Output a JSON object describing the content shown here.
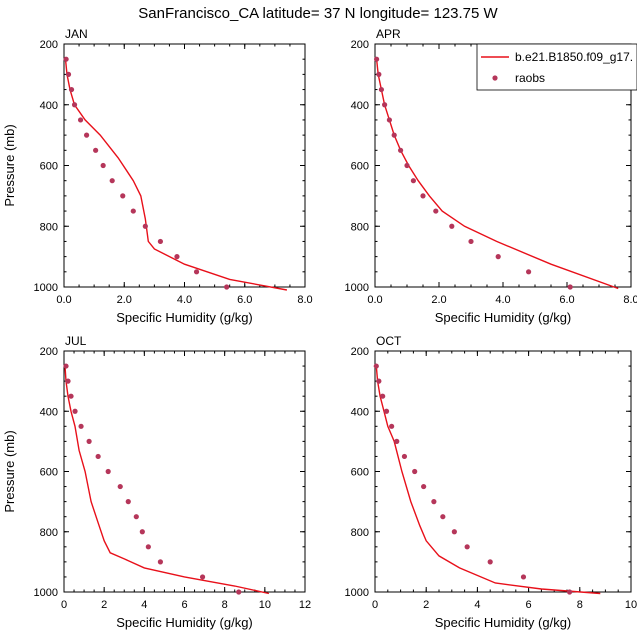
{
  "title": "SanFrancisco_CA  latitude= 37 N longitude= 123.75 W",
  "colors": {
    "model": "#e8101a",
    "raobs": "#b5365a",
    "axis": "#000000"
  },
  "legend": {
    "placement": "top-right of APR panel",
    "model_label": "b.e21.B1850.f09_g17.",
    "raobs_label": "raobs"
  },
  "chart_data": [
    {
      "type": "line",
      "panel": "JAN",
      "title": "JAN",
      "xlabel": "Specific Humidity (g/kg)",
      "ylabel": "Pressure (mb)",
      "xlim": [
        0,
        8
      ],
      "ylim": [
        1000,
        200
      ],
      "yaxis": "inverted",
      "xticks": [
        0,
        2,
        4,
        6,
        8
      ],
      "xtick_labels": [
        "0.0",
        "2.0",
        "4.0",
        "6.0",
        "8.0"
      ],
      "yticks": [
        200,
        400,
        600,
        800,
        1000
      ],
      "ytick_labels": [
        "200",
        "400",
        "600",
        "800",
        "1000"
      ],
      "series": [
        {
          "name": "b.e21.B1850.f09_g17.",
          "kind": "line",
          "x": [
            0.05,
            0.1,
            0.2,
            0.35,
            0.7,
            1.2,
            1.8,
            2.3,
            2.55,
            2.7,
            2.8,
            3.0,
            4.0,
            5.5,
            7.4
          ],
          "y": [
            250,
            300,
            350,
            400,
            450,
            500,
            575,
            650,
            700,
            775,
            850,
            875,
            925,
            975,
            1010
          ]
        },
        {
          "name": "raobs",
          "kind": "scatter",
          "x": [
            0.07,
            0.15,
            0.25,
            0.35,
            0.55,
            0.75,
            1.05,
            1.3,
            1.6,
            1.95,
            2.3,
            2.7,
            3.2,
            3.75,
            4.4,
            5.4
          ],
          "y": [
            250,
            300,
            350,
            400,
            450,
            500,
            550,
            600,
            650,
            700,
            750,
            800,
            850,
            900,
            950,
            1000
          ]
        }
      ]
    },
    {
      "type": "line",
      "panel": "APR",
      "title": "APR",
      "xlabel": "Specific Humidity (g/kg)",
      "ylabel": "",
      "xlim": [
        0,
        8
      ],
      "ylim": [
        1000,
        200
      ],
      "yaxis": "inverted",
      "xticks": [
        0,
        2,
        4,
        6,
        8
      ],
      "xtick_labels": [
        "0.0",
        "2.0",
        "4.0",
        "6.0",
        "8.0"
      ],
      "yticks": [
        200,
        400,
        600,
        800,
        1000
      ],
      "ytick_labels": [
        "200",
        "400",
        "600",
        "800",
        "1000"
      ],
      "series": [
        {
          "name": "b.e21.B1850.f09_g17.",
          "kind": "line",
          "x": [
            0.05,
            0.1,
            0.2,
            0.3,
            0.45,
            0.6,
            0.8,
            1.05,
            1.35,
            1.7,
            2.1,
            2.8,
            3.8,
            5.5,
            7.6
          ],
          "y": [
            250,
            300,
            350,
            400,
            450,
            500,
            550,
            600,
            650,
            700,
            750,
            800,
            850,
            925,
            1005
          ]
        },
        {
          "name": "raobs",
          "kind": "scatter",
          "x": [
            0.05,
            0.12,
            0.2,
            0.3,
            0.45,
            0.6,
            0.8,
            1.0,
            1.2,
            1.5,
            1.9,
            2.4,
            3.0,
            3.85,
            4.8,
            6.1
          ],
          "y": [
            250,
            300,
            350,
            400,
            450,
            500,
            550,
            600,
            650,
            700,
            750,
            800,
            850,
            900,
            950,
            1000
          ]
        }
      ]
    },
    {
      "type": "line",
      "panel": "JUL",
      "title": "JUL",
      "xlabel": "Specific Humidity (g/kg)",
      "ylabel": "Pressure (mb)",
      "xlim": [
        0,
        12
      ],
      "ylim": [
        1000,
        200
      ],
      "yaxis": "inverted",
      "xticks": [
        0,
        2,
        4,
        6,
        8,
        10,
        12
      ],
      "xtick_labels": [
        "0",
        "2",
        "4",
        "6",
        "8",
        "10",
        "12"
      ],
      "yticks": [
        200,
        400,
        600,
        800,
        1000
      ],
      "ytick_labels": [
        "200",
        "400",
        "600",
        "800",
        "1000"
      ],
      "series": [
        {
          "name": "b.e21.B1850.f09_g17.",
          "kind": "line",
          "x": [
            0.05,
            0.1,
            0.2,
            0.35,
            0.55,
            0.75,
            1.05,
            1.35,
            1.7,
            2.0,
            2.3,
            3.0,
            4.0,
            6.0,
            8.5,
            10.2
          ],
          "y": [
            250,
            300,
            350,
            400,
            450,
            530,
            600,
            700,
            770,
            830,
            870,
            890,
            920,
            950,
            980,
            1005
          ]
        },
        {
          "name": "raobs",
          "kind": "scatter",
          "x": [
            0.1,
            0.2,
            0.35,
            0.55,
            0.85,
            1.25,
            1.7,
            2.2,
            2.8,
            3.2,
            3.6,
            3.9,
            4.2,
            4.8,
            6.9,
            8.7
          ],
          "y": [
            250,
            300,
            350,
            400,
            450,
            500,
            550,
            600,
            650,
            700,
            750,
            800,
            850,
            900,
            950,
            1000
          ]
        }
      ]
    },
    {
      "type": "line",
      "panel": "OCT",
      "title": "OCT",
      "xlabel": "Specific Humidity (g/kg)",
      "ylabel": "",
      "xlim": [
        0,
        10
      ],
      "ylim": [
        1000,
        200
      ],
      "yaxis": "inverted",
      "xticks": [
        0,
        2,
        4,
        6,
        8,
        10
      ],
      "xtick_labels": [
        "0",
        "2",
        "4",
        "6",
        "8",
        "10"
      ],
      "yticks": [
        200,
        400,
        600,
        800,
        1000
      ],
      "ytick_labels": [
        "200",
        "400",
        "600",
        "800",
        "1000"
      ],
      "series": [
        {
          "name": "b.e21.B1850.f09_g17.",
          "kind": "line",
          "x": [
            0.05,
            0.1,
            0.2,
            0.35,
            0.5,
            0.75,
            1.05,
            1.4,
            1.75,
            2.0,
            2.5,
            3.3,
            4.7,
            6.5,
            8.8
          ],
          "y": [
            250,
            300,
            350,
            400,
            450,
            500,
            600,
            700,
            780,
            830,
            880,
            920,
            970,
            990,
            1005
          ]
        },
        {
          "name": "raobs",
          "kind": "scatter",
          "x": [
            0.05,
            0.15,
            0.3,
            0.45,
            0.65,
            0.85,
            1.15,
            1.55,
            1.9,
            2.3,
            2.65,
            3.1,
            3.6,
            4.5,
            5.8,
            7.6
          ],
          "y": [
            250,
            300,
            350,
            400,
            450,
            500,
            550,
            600,
            650,
            700,
            750,
            800,
            850,
            900,
            950,
            1000
          ]
        }
      ]
    }
  ]
}
